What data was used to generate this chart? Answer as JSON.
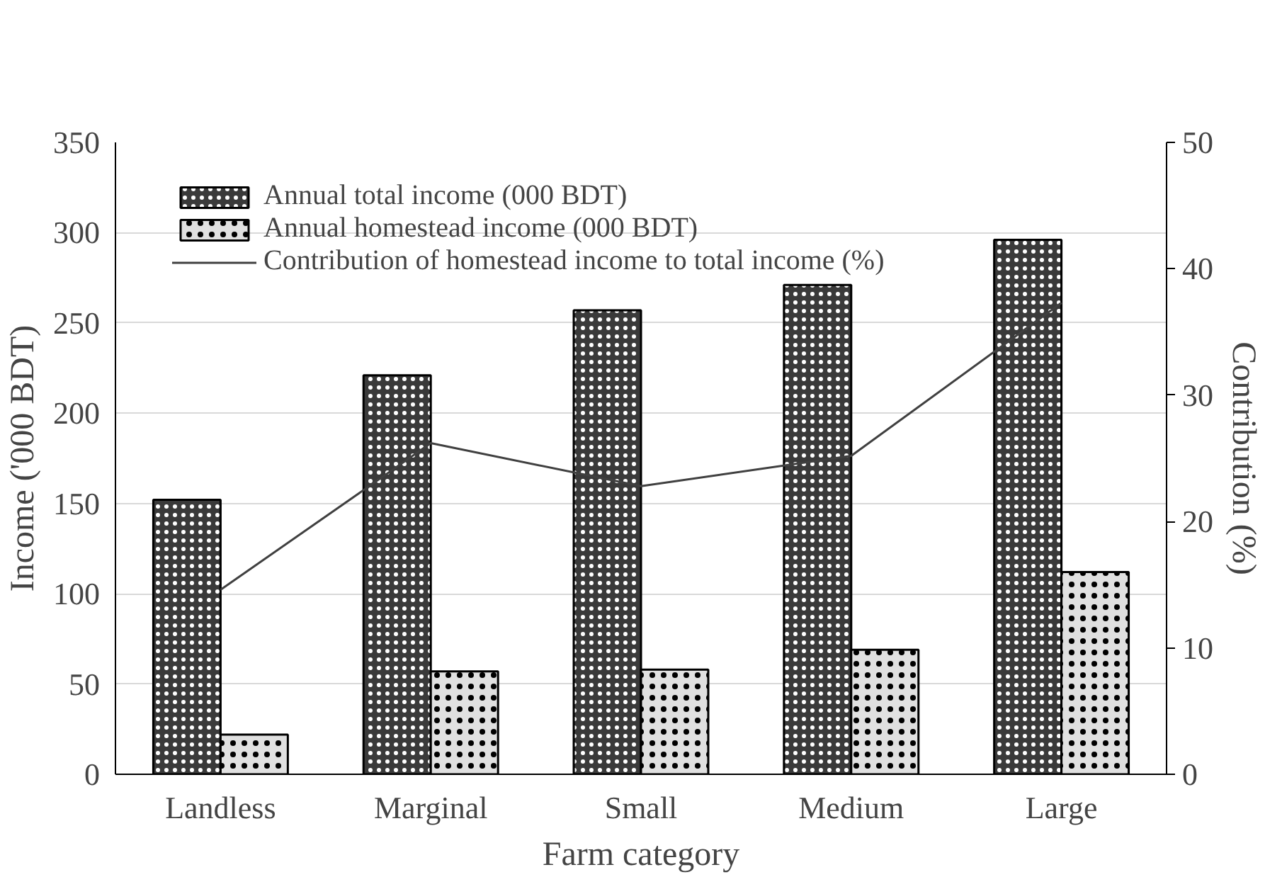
{
  "chart_data": {
    "type": "bar",
    "xlabel": "Farm category",
    "ylabel": "Income ('000 BDT)",
    "y2label": "Contribution (%)",
    "categories": [
      "Landless",
      "Marginal",
      "Small",
      "Medium",
      "Large"
    ],
    "series": [
      {
        "name": "Annual total income (000 BDT)",
        "color": "#3a3a3a",
        "values": [
          152,
          221,
          257,
          271,
          296
        ]
      },
      {
        "name": "Annual homestead income (000 BDT)",
        "color": "#e0e0e0",
        "values": [
          22,
          57,
          58,
          69,
          112
        ]
      },
      {
        "name": "Contribution of homestead income to total income (%)",
        "type": "line",
        "axis": "y2",
        "color": "#404040",
        "values": [
          14.6,
          26.2,
          22.8,
          25.2,
          37.3
        ]
      }
    ],
    "ylim": [
      0,
      350
    ],
    "yticks": [
      0,
      50,
      100,
      150,
      200,
      250,
      300,
      350
    ],
    "y2lim": [
      0,
      50
    ],
    "y2ticks": [
      0,
      10,
      20,
      30,
      40,
      50
    ],
    "grid": "y",
    "legend": "top",
    "line_style": "solid",
    "marker": "none"
  }
}
